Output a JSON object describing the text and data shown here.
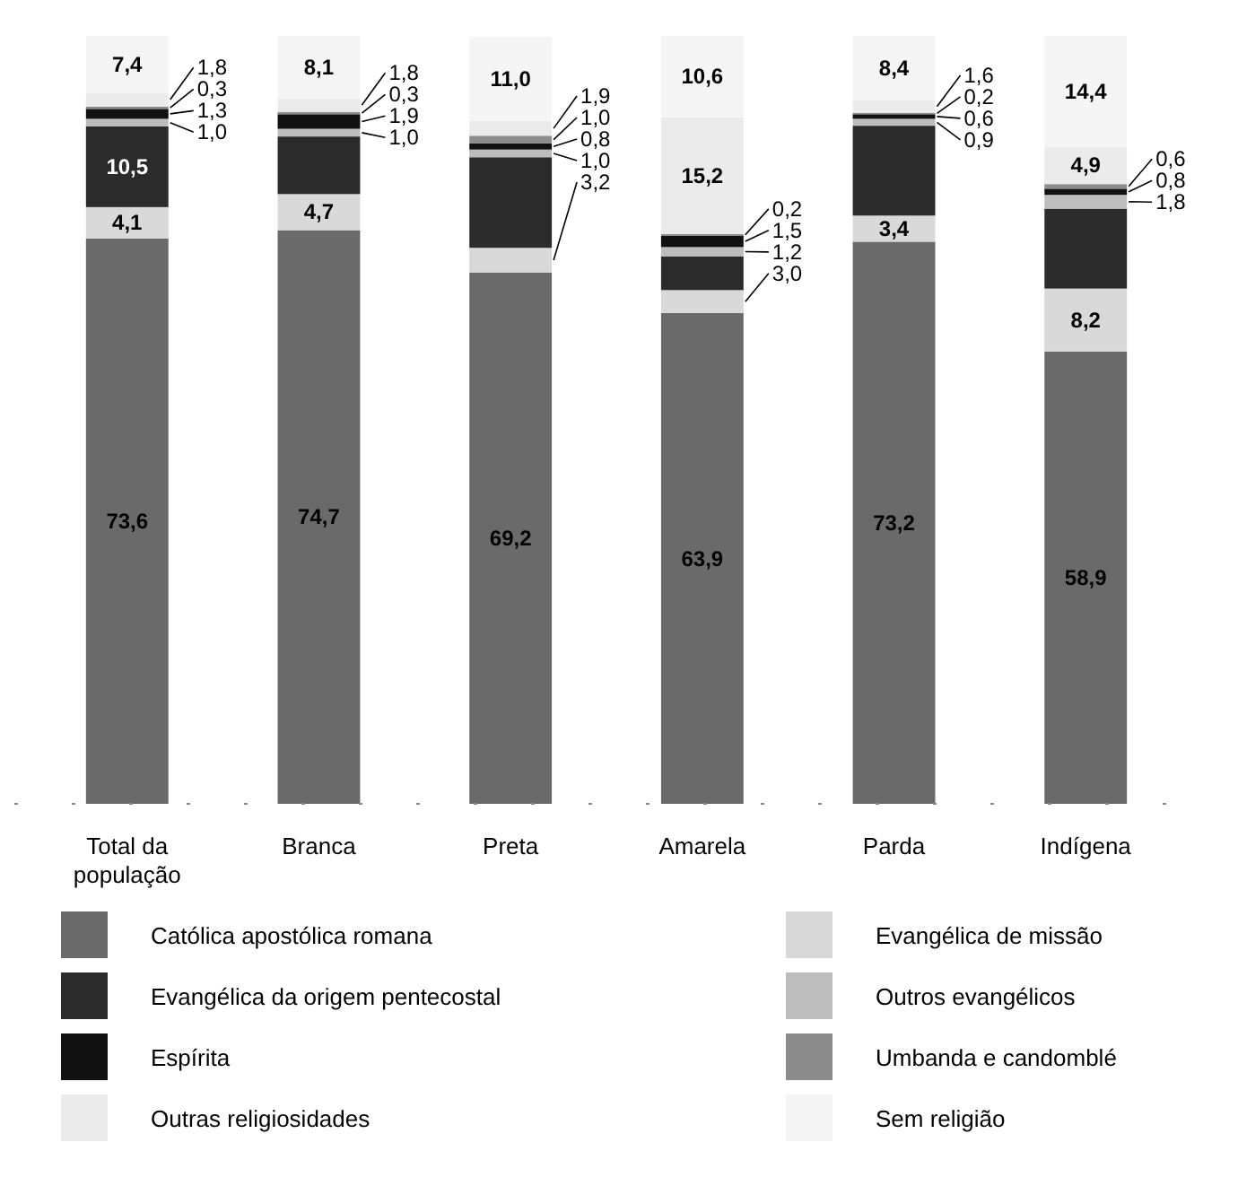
{
  "chart_data": {
    "type": "bar",
    "stacked": true,
    "legend": "bottom",
    "categories": [
      "Total da população",
      "Branca",
      "Preta",
      "Amarela",
      "Parda",
      "Indígena"
    ],
    "series": [
      {
        "name": "Católica apostólica romana",
        "color": "#6a6a6a",
        "values": [
          73.6,
          74.7,
          69.2,
          63.9,
          73.2,
          58.9
        ],
        "value_labels": [
          "73,6",
          "74,7",
          "69,2",
          "63,9",
          "73,2",
          "58,9"
        ]
      },
      {
        "name": "Evangélica de missão",
        "color": "#d9d9d9",
        "values": [
          4.1,
          4.7,
          3.2,
          3.0,
          3.4,
          8.2
        ],
        "value_labels": [
          "4,1",
          "4,7",
          "3,2",
          "3,0",
          "3,4",
          "8,2"
        ]
      },
      {
        "name": "Evangélica da origem pentecostal",
        "color": "#2b2b2b",
        "values": [
          10.5,
          7.5,
          11.8,
          4.4,
          11.7,
          10.4
        ],
        "value_labels": [
          "10,5",
          null,
          null,
          null,
          null,
          null
        ]
      },
      {
        "name": "Outros evangélicos",
        "color": "#bdbdbd",
        "values": [
          1.0,
          1.0,
          1.0,
          1.2,
          0.9,
          1.8
        ],
        "value_labels": [
          "1,0",
          "1,0",
          "1,0",
          "1,2",
          "0,9",
          "1,8"
        ]
      },
      {
        "name": "Espírita",
        "color": "#111111",
        "values": [
          1.3,
          1.9,
          0.8,
          1.5,
          0.6,
          0.8
        ],
        "value_labels": [
          "1,3",
          "1,9",
          "0,8",
          "1,5",
          "0,6",
          "0,8"
        ]
      },
      {
        "name": "Umbanda e candomblé",
        "color": "#8c8c8c",
        "values": [
          0.3,
          0.3,
          1.0,
          0.2,
          0.2,
          0.6
        ],
        "value_labels": [
          "0,3",
          "0,3",
          "1,0",
          "0,2",
          "0,2",
          "0,6"
        ]
      },
      {
        "name": "Outras religiosidades",
        "color": "#ebebeb",
        "values": [
          1.8,
          1.8,
          1.9,
          15.2,
          1.6,
          4.9
        ],
        "value_labels": [
          "1,8",
          "1,8",
          "1,9",
          "15,2",
          "1,6",
          "4,9"
        ]
      },
      {
        "name": "Sem religião",
        "color": "#f5f5f5",
        "values": [
          7.4,
          8.1,
          11.0,
          10.6,
          8.4,
          14.4
        ],
        "value_labels": [
          "7,4",
          "8,1",
          "11,0",
          "10,6",
          "8,4",
          "14,4"
        ]
      }
    ]
  }
}
